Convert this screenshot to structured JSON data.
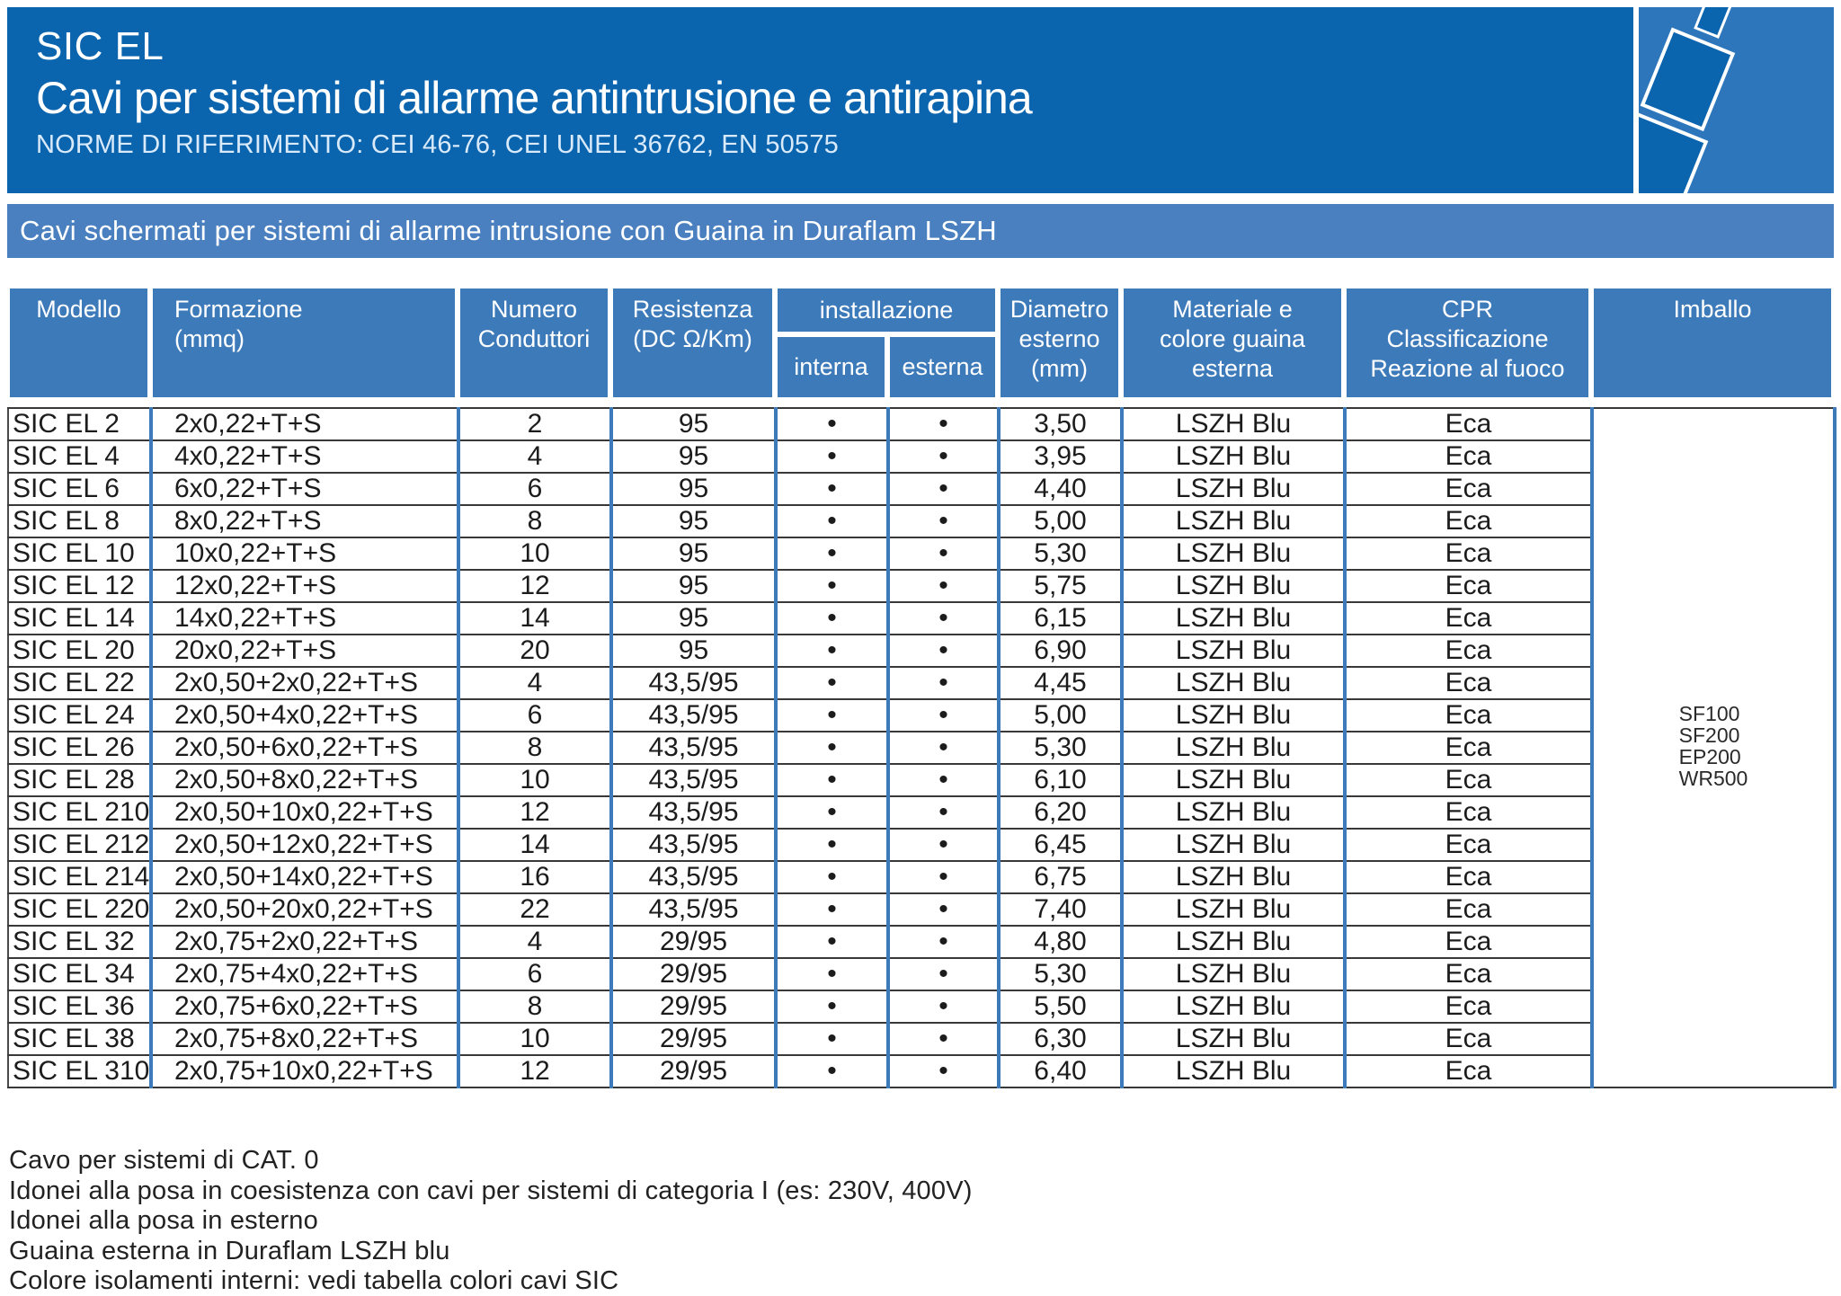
{
  "page": {
    "header": {
      "title": "SIC EL",
      "subtitle": "Cavi per sistemi di allarme antintrusione e antirapina",
      "norms": "NORME DI RIFERIMENTO: CEI 46-76, CEI UNEL 36762, EN 50575"
    },
    "section_band": {
      "title": "Cavi schermati per sistemi di allarme intrusione con Guaina in Duraflam LSZH"
    },
    "table": {
      "headers": {
        "modello": "Modello",
        "formazione_l1": "Formazione",
        "formazione_l2": "(mmq)",
        "numero_l1": "Numero",
        "numero_l2": "Conduttori",
        "resistenza_l1": "Resistenza",
        "resistenza_l2": "(DC Ω/Km)",
        "installazione": "installazione",
        "interna": "interna",
        "esterna": "esterna",
        "diametro_l1": "Diametro",
        "diametro_l2": "esterno",
        "diametro_l3": "(mm)",
        "materiale_l1": "Materiale e",
        "materiale_l2": "colore guaina",
        "materiale_l3": "esterna",
        "cpr_l1": "CPR",
        "cpr_l2": "Classificazione",
        "cpr_l3": "Reazione al fuoco",
        "imballo": "Imballo"
      },
      "rows": [
        {
          "modello": "SIC EL 2",
          "formazione": "2x0,22+T+S",
          "conduttori": "2",
          "resistenza": "95",
          "interna": "•",
          "esterna": "•",
          "diametro": "3,50",
          "materiale": "LSZH Blu",
          "cpr": "Eca"
        },
        {
          "modello": "SIC EL 4",
          "formazione": "4x0,22+T+S",
          "conduttori": "4",
          "resistenza": "95",
          "interna": "•",
          "esterna": "•",
          "diametro": "3,95",
          "materiale": "LSZH Blu",
          "cpr": "Eca"
        },
        {
          "modello": "SIC EL 6",
          "formazione": "6x0,22+T+S",
          "conduttori": "6",
          "resistenza": "95",
          "interna": "•",
          "esterna": "•",
          "diametro": "4,40",
          "materiale": "LSZH Blu",
          "cpr": "Eca"
        },
        {
          "modello": "SIC EL 8",
          "formazione": "8x0,22+T+S",
          "conduttori": "8",
          "resistenza": "95",
          "interna": "•",
          "esterna": "•",
          "diametro": "5,00",
          "materiale": "LSZH Blu",
          "cpr": "Eca"
        },
        {
          "modello": "SIC EL 10",
          "formazione": "10x0,22+T+S",
          "conduttori": "10",
          "resistenza": "95",
          "interna": "•",
          "esterna": "•",
          "diametro": "5,30",
          "materiale": "LSZH Blu",
          "cpr": "Eca"
        },
        {
          "modello": "SIC EL 12",
          "formazione": "12x0,22+T+S",
          "conduttori": "12",
          "resistenza": "95",
          "interna": "•",
          "esterna": "•",
          "diametro": "5,75",
          "materiale": "LSZH Blu",
          "cpr": "Eca"
        },
        {
          "modello": "SIC EL 14",
          "formazione": "14x0,22+T+S",
          "conduttori": "14",
          "resistenza": "95",
          "interna": "•",
          "esterna": "•",
          "diametro": "6,15",
          "materiale": "LSZH Blu",
          "cpr": "Eca"
        },
        {
          "modello": "SIC EL 20",
          "formazione": "20x0,22+T+S",
          "conduttori": "20",
          "resistenza": "95",
          "interna": "•",
          "esterna": "•",
          "diametro": "6,90",
          "materiale": "LSZH Blu",
          "cpr": "Eca"
        },
        {
          "modello": "SIC EL 22",
          "formazione": "2x0,50+2x0,22+T+S",
          "conduttori": "4",
          "resistenza": "43,5/95",
          "interna": "•",
          "esterna": "•",
          "diametro": "4,45",
          "materiale": "LSZH Blu",
          "cpr": "Eca"
        },
        {
          "modello": "SIC EL 24",
          "formazione": "2x0,50+4x0,22+T+S",
          "conduttori": "6",
          "resistenza": "43,5/95",
          "interna": "•",
          "esterna": "•",
          "diametro": "5,00",
          "materiale": "LSZH Blu",
          "cpr": "Eca"
        },
        {
          "modello": "SIC EL 26",
          "formazione": "2x0,50+6x0,22+T+S",
          "conduttori": "8",
          "resistenza": "43,5/95",
          "interna": "•",
          "esterna": "•",
          "diametro": "5,30",
          "materiale": "LSZH Blu",
          "cpr": "Eca"
        },
        {
          "modello": "SIC EL 28",
          "formazione": "2x0,50+8x0,22+T+S",
          "conduttori": "10",
          "resistenza": "43,5/95",
          "interna": "•",
          "esterna": "•",
          "diametro": "6,10",
          "materiale": "LSZH Blu",
          "cpr": "Eca"
        },
        {
          "modello": "SIC EL 210",
          "formazione": "2x0,50+10x0,22+T+S",
          "conduttori": "12",
          "resistenza": "43,5/95",
          "interna": "•",
          "esterna": "•",
          "diametro": "6,20",
          "materiale": "LSZH Blu",
          "cpr": "Eca"
        },
        {
          "modello": "SIC EL 212",
          "formazione": "2x0,50+12x0,22+T+S",
          "conduttori": "14",
          "resistenza": "43,5/95",
          "interna": "•",
          "esterna": "•",
          "diametro": "6,45",
          "materiale": "LSZH Blu",
          "cpr": "Eca"
        },
        {
          "modello": "SIC EL 214",
          "formazione": "2x0,50+14x0,22+T+S",
          "conduttori": "16",
          "resistenza": "43,5/95",
          "interna": "•",
          "esterna": "•",
          "diametro": "6,75",
          "materiale": "LSZH Blu",
          "cpr": "Eca"
        },
        {
          "modello": "SIC EL 220",
          "formazione": "2x0,50+20x0,22+T+S",
          "conduttori": "22",
          "resistenza": "43,5/95",
          "interna": "•",
          "esterna": "•",
          "diametro": "7,40",
          "materiale": "LSZH Blu",
          "cpr": "Eca"
        },
        {
          "modello": "SIC EL 32",
          "formazione": "2x0,75+2x0,22+T+S",
          "conduttori": "4",
          "resistenza": "29/95",
          "interna": "•",
          "esterna": "•",
          "diametro": "4,80",
          "materiale": "LSZH Blu",
          "cpr": "Eca"
        },
        {
          "modello": "SIC EL 34",
          "formazione": "2x0,75+4x0,22+T+S",
          "conduttori": "6",
          "resistenza": "29/95",
          "interna": "•",
          "esterna": "•",
          "diametro": "5,30",
          "materiale": "LSZH Blu",
          "cpr": "Eca"
        },
        {
          "modello": "SIC EL 36",
          "formazione": "2x0,75+6x0,22+T+S",
          "conduttori": "8",
          "resistenza": "29/95",
          "interna": "•",
          "esterna": "•",
          "diametro": "5,50",
          "materiale": "LSZH Blu",
          "cpr": "Eca"
        },
        {
          "modello": "SIC EL 38",
          "formazione": "2x0,75+8x0,22+T+S",
          "conduttori": "10",
          "resistenza": "29/95",
          "interna": "•",
          "esterna": "•",
          "diametro": "6,30",
          "materiale": "LSZH Blu",
          "cpr": "Eca"
        },
        {
          "modello": "SIC EL 310",
          "formazione": "2x0,75+10x0,22+T+S",
          "conduttori": "12",
          "resistenza": "29/95",
          "interna": "•",
          "esterna": "•",
          "diametro": "6,40",
          "materiale": "LSZH Blu",
          "cpr": "Eca"
        }
      ],
      "imballo_values": [
        "SF100",
        "SF200",
        "EP200",
        "WR500"
      ]
    },
    "notes": [
      "Cavo per sistemi di CAT. 0",
      "Idonei alla posa in coesistenza con cavi per sistemi di categoria I (es: 230V, 400V)",
      "Idonei alla posa in esterno",
      "Guaina esterna in Duraflam LSZH blu",
      "Colore isolamenti interni: vedi tabella colori cavi SIC"
    ],
    "colors": {
      "header_blue": "#0b64ae",
      "band_blue": "#4a80c0",
      "cell_blue": "#3d7ab9",
      "graphic_blue": "#2e76bb",
      "row_line": "#383838"
    }
  }
}
